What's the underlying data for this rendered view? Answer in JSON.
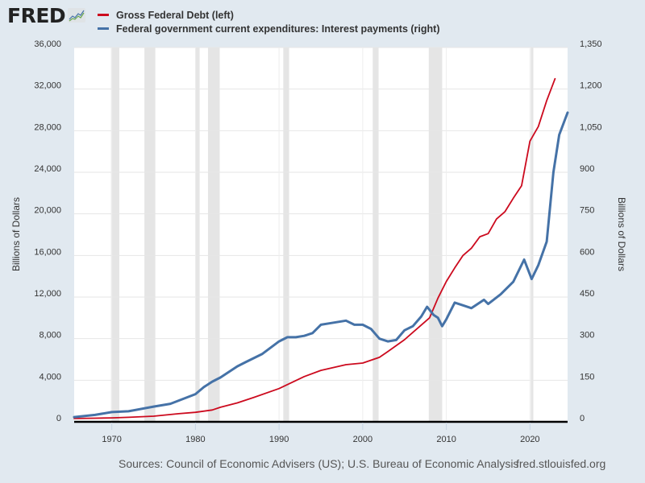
{
  "logo": {
    "text": "FRED"
  },
  "legend": [
    {
      "label": "Gross Federal Debt (left)",
      "color": "#cc0a1e"
    },
    {
      "label": "Federal government current expenditures: Interest payments (right)",
      "color": "#4572a7"
    }
  ],
  "footer": {
    "source": "Sources: Council of Economic Advisers (US); U.S. Bureau of Economic Analysis",
    "site": "fred.stlouisfed.org"
  },
  "chart_data": {
    "type": "line",
    "title": "",
    "xlabel": "",
    "ylabel_left": "Billions of Dollars",
    "ylabel_right": "Billions of Dollars",
    "xlim": [
      1965.5,
      2024.5
    ],
    "ylim_left": [
      0,
      36000
    ],
    "ylim_right": [
      0,
      1350
    ],
    "x_ticks": [
      1970,
      1980,
      1990,
      2000,
      2010,
      2020
    ],
    "x_tick_labels": [
      "1970",
      "1980",
      "1990",
      "2000",
      "2010",
      "2020"
    ],
    "y_left_ticks": [
      0,
      4000,
      8000,
      12000,
      16000,
      20000,
      24000,
      28000,
      32000,
      36000
    ],
    "y_left_tick_labels": [
      "0",
      "4,000",
      "8,000",
      "12,000",
      "16,000",
      "20,000",
      "24,000",
      "28,000",
      "32,000",
      "36,000"
    ],
    "y_right_ticks": [
      0,
      150,
      300,
      450,
      600,
      750,
      900,
      1050,
      1200,
      1350
    ],
    "y_right_tick_labels": [
      "0",
      "150",
      "300",
      "450",
      "600",
      "750",
      "900",
      "1,050",
      "1,200",
      "1,350"
    ],
    "grid": true,
    "legend_position": "top-left",
    "recessions": [
      [
        1969.9,
        1970.9
      ],
      [
        1973.9,
        1975.2
      ],
      [
        1980.0,
        1980.5
      ],
      [
        1981.5,
        1982.9
      ],
      [
        1990.5,
        1991.2
      ],
      [
        2001.2,
        2001.9
      ],
      [
        2007.9,
        2009.5
      ],
      [
        2020.1,
        2020.4
      ]
    ],
    "series": [
      {
        "name": "Gross Federal Debt (left)",
        "axis": "left",
        "color": "#cc0a1e",
        "x": [
          1965.5,
          1968,
          1970,
          1972,
          1975,
          1978,
          1980,
          1982,
          1983,
          1985,
          1987,
          1990,
          1993,
          1995,
          1998,
          2000,
          2002,
          2003,
          2005,
          2008,
          2009,
          2010,
          2011,
          2012,
          2013,
          2014,
          2015,
          2016,
          2017,
          2018,
          2019,
          2020,
          2021,
          2022,
          2023
        ],
        "values": [
          320,
          350,
          380,
          430,
          540,
          780,
          910,
          1140,
          1400,
          1820,
          2350,
          3200,
          4350,
          4950,
          5500,
          5650,
          6200,
          6750,
          7900,
          10000,
          11900,
          13500,
          14800,
          16000,
          16700,
          17800,
          18100,
          19500,
          20200,
          21500,
          22700,
          27000,
          28400,
          30900,
          33000
        ]
      },
      {
        "name": "Federal government current expenditures: Interest payments (right)",
        "axis": "right",
        "color": "#4572a7",
        "x": [
          1965.5,
          1968,
          1970,
          1972,
          1975,
          1977,
          1980,
          1981,
          1982,
          1983,
          1985,
          1986,
          1988,
          1990,
          1991,
          1992,
          1993,
          1994,
          1995,
          1996,
          1998,
          1999,
          2000,
          2001,
          2002,
          2003,
          2004,
          2005,
          2006,
          2007,
          2007.7,
          2008.5,
          2009,
          2009.5,
          2010,
          2011,
          2012,
          2013,
          2014.5,
          2015,
          2016.5,
          2018,
          2019.3,
          2020.2,
          2021,
          2022,
          2022.8,
          2023.5,
          2024.5
        ],
        "values": [
          17,
          25,
          35,
          38,
          55,
          65,
          100,
          125,
          145,
          160,
          200,
          215,
          245,
          290,
          305,
          305,
          310,
          320,
          350,
          355,
          365,
          350,
          350,
          335,
          300,
          290,
          295,
          330,
          345,
          380,
          415,
          385,
          375,
          345,
          370,
          430,
          420,
          410,
          440,
          425,
          460,
          505,
          585,
          515,
          565,
          650,
          900,
          1035,
          1115
        ]
      }
    ]
  }
}
